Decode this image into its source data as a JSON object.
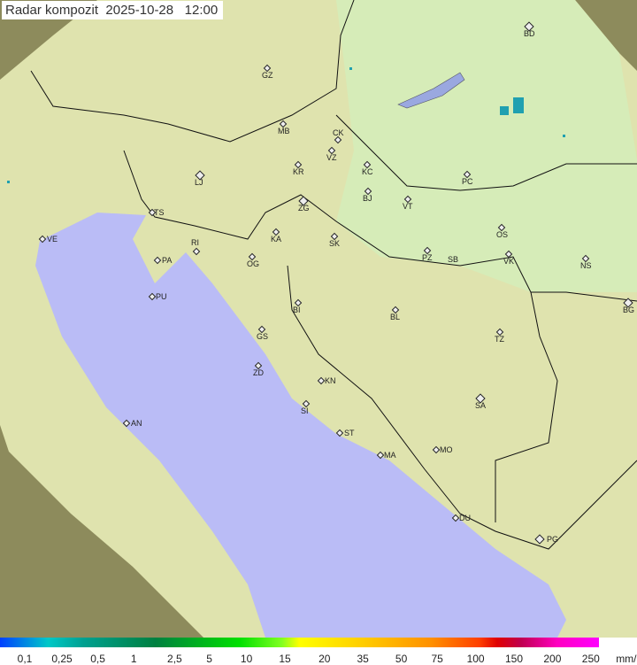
{
  "title": {
    "product": "Radar kompozit",
    "date": "2025-10-28",
    "time": "12:00"
  },
  "cities": [
    "BD",
    "GZ",
    "MB",
    "CK",
    "VZ",
    "KC",
    "KR",
    "PC",
    "LJ",
    "ZG",
    "BJ",
    "VT",
    "TS",
    "VE",
    "RI",
    "KA",
    "SK",
    "OS",
    "PA",
    "OG",
    "PZ",
    "SB",
    "VK",
    "NS",
    "PU",
    "BG",
    "BI",
    "BL",
    "GS",
    "TZ",
    "ZD",
    "KN",
    "SA",
    "SI",
    "AN",
    "ST",
    "MA",
    "MO",
    "DU",
    "PG"
  ],
  "legend": {
    "labels": [
      "0,1",
      "0,25",
      "0,5",
      "1",
      "2,5",
      "5",
      "10",
      "15",
      "20",
      "35",
      "50",
      "75",
      "100",
      "150",
      "200",
      "250"
    ],
    "unit": "mm/h"
  },
  "colors": {
    "sea": "#babcf6",
    "land": "#dfe6b0",
    "outside": "#8f8d5a",
    "precip": "#20a0b0"
  }
}
